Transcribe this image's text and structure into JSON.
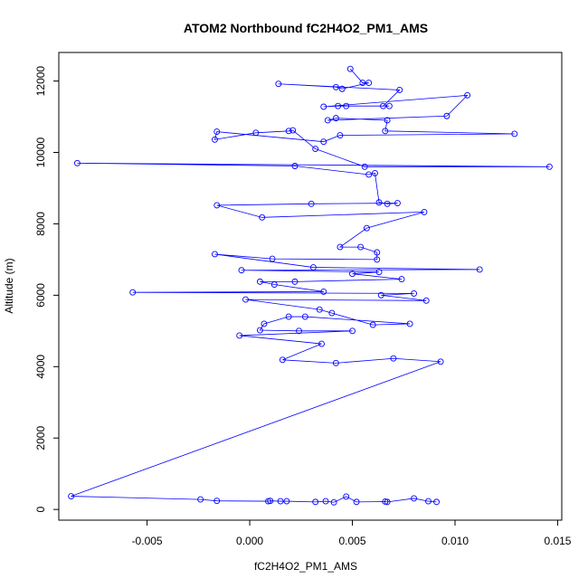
{
  "chart_data": {
    "type": "line",
    "title": "ATOM2 Northbound fC2H4O2_PM1_AMS",
    "xlabel": "fC2H4O2_PM1_AMS",
    "ylabel": "Altitude (m)",
    "xlim": [
      -0.0093,
      0.0152
    ],
    "ylim": [
      -300,
      12800
    ],
    "x_ticks": [
      -0.005,
      0.0,
      0.005,
      0.01,
      0.015
    ],
    "x_tick_labels": [
      "-0.005",
      "0.000",
      "0.005",
      "0.010",
      "0.015"
    ],
    "y_ticks": [
      0,
      2000,
      4000,
      6000,
      8000,
      10000,
      12000
    ],
    "y_tick_labels": [
      "0",
      "2000",
      "4000",
      "6000",
      "8000",
      "10000",
      "12000"
    ],
    "grid": false,
    "series": [
      {
        "color": "#0000ff",
        "marker": "open-circle",
        "points": [
          [
            0.0049,
            12340
          ],
          [
            0.0055,
            11950
          ],
          [
            0.0058,
            11950
          ],
          [
            0.0045,
            11780
          ],
          [
            0.0042,
            11830
          ],
          [
            0.0014,
            11920
          ],
          [
            0.0073,
            11750
          ],
          [
            0.0065,
            11300
          ],
          [
            0.0068,
            11300
          ],
          [
            0.0047,
            11300
          ],
          [
            0.0043,
            11300
          ],
          [
            0.0036,
            11280
          ],
          [
            0.0106,
            11600
          ],
          [
            0.0096,
            11020
          ],
          [
            0.0038,
            10900
          ],
          [
            0.0042,
            10960
          ],
          [
            0.0067,
            10900
          ],
          [
            0.0066,
            10600
          ],
          [
            0.0129,
            10520
          ],
          [
            0.0044,
            10480
          ],
          [
            0.0036,
            10300
          ],
          [
            -0.0016,
            10580
          ],
          [
            -0.0017,
            10360
          ],
          [
            0.0003,
            10550
          ],
          [
            0.0019,
            10600
          ],
          [
            0.0021,
            10620
          ],
          [
            0.0032,
            10100
          ],
          [
            0.0056,
            9600
          ],
          [
            0.0146,
            9600
          ],
          [
            -0.0084,
            9700
          ],
          [
            0.0022,
            9620
          ],
          [
            0.0058,
            9380
          ],
          [
            0.0061,
            9420
          ],
          [
            0.0063,
            8600
          ],
          [
            0.0067,
            8560
          ],
          [
            0.0072,
            8580
          ],
          [
            0.003,
            8560
          ],
          [
            -0.0016,
            8520
          ],
          [
            0.0006,
            8180
          ],
          [
            0.0085,
            8330
          ],
          [
            0.0057,
            7880
          ],
          [
            0.0044,
            7350
          ],
          [
            0.0054,
            7350
          ],
          [
            0.0062,
            7200
          ],
          [
            0.0062,
            7000
          ],
          [
            0.0011,
            7020
          ],
          [
            -0.0017,
            7150
          ],
          [
            0.0031,
            6780
          ],
          [
            0.0112,
            6720
          ],
          [
            -0.0004,
            6700
          ],
          [
            0.0063,
            6650
          ],
          [
            0.005,
            6600
          ],
          [
            0.0074,
            6450
          ],
          [
            0.0022,
            6380
          ],
          [
            0.0005,
            6380
          ],
          [
            0.0012,
            6300
          ],
          [
            0.0036,
            6100
          ],
          [
            -0.0057,
            6080
          ],
          [
            0.008,
            6050
          ],
          [
            0.0064,
            6000
          ],
          [
            0.0086,
            5850
          ],
          [
            -0.0002,
            5880
          ],
          [
            0.0034,
            5600
          ],
          [
            0.004,
            5500
          ],
          [
            0.006,
            5170
          ],
          [
            0.0078,
            5200
          ],
          [
            0.0027,
            5400
          ],
          [
            0.0019,
            5400
          ],
          [
            0.0007,
            5200
          ],
          [
            0.0005,
            5020
          ],
          [
            0.0024,
            5000
          ],
          [
            0.005,
            5000
          ],
          [
            -0.0005,
            4870
          ],
          [
            0.0035,
            4640
          ],
          [
            0.0016,
            4190
          ],
          [
            0.0042,
            4100
          ],
          [
            0.007,
            4230
          ],
          [
            0.0093,
            4140
          ],
          [
            -0.0087,
            370
          ],
          [
            -0.0024,
            280
          ],
          [
            -0.0016,
            240
          ],
          [
            0.0009,
            230
          ],
          [
            0.001,
            240
          ],
          [
            0.0015,
            230
          ],
          [
            0.0018,
            230
          ],
          [
            0.0032,
            210
          ],
          [
            0.0037,
            230
          ],
          [
            0.0041,
            200
          ],
          [
            0.0047,
            360
          ],
          [
            0.0052,
            210
          ],
          [
            0.0066,
            220
          ],
          [
            0.0067,
            210
          ],
          [
            0.008,
            310
          ],
          [
            0.0087,
            230
          ],
          [
            0.0091,
            210
          ]
        ]
      }
    ]
  }
}
